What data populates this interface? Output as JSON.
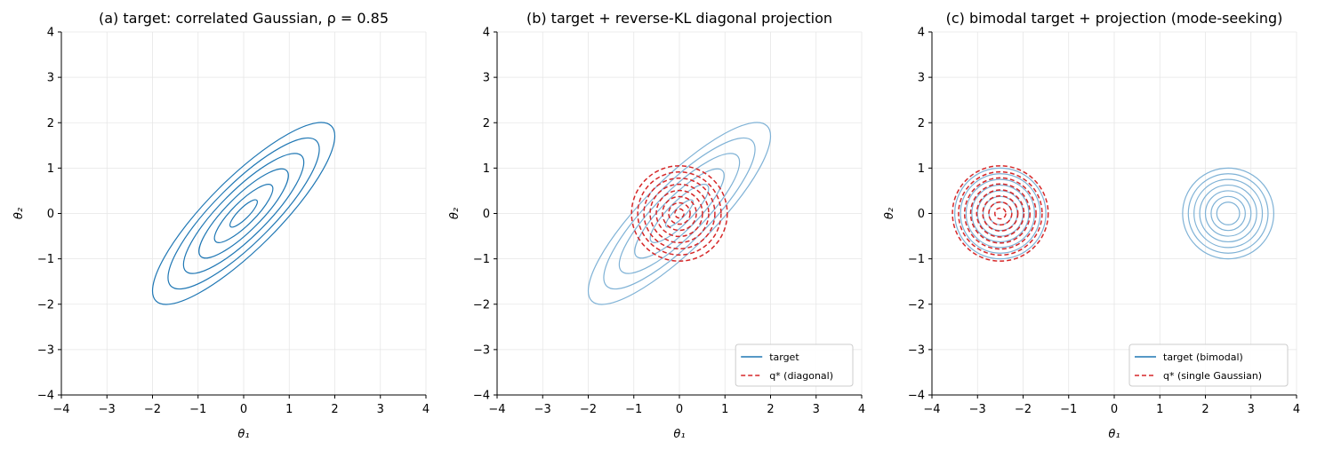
{
  "colors": {
    "target": "#1f77b4",
    "target_faded": "#7fb2d6",
    "projection": "#d62728",
    "grid": "#e6e6e6",
    "axis": "#000000"
  },
  "chart_data": [
    {
      "type": "contour",
      "title": "(a) target: correlated Gaussian, ρ = 0.85",
      "xlabel": "θ₁",
      "ylabel": "θ₂",
      "xlim": [
        -4,
        4
      ],
      "ylim": [
        -4,
        4
      ],
      "xticks": [
        "−4",
        "−3",
        "−2",
        "−1",
        "0",
        "1",
        "2",
        "3",
        "4"
      ],
      "yticks": [
        "−4",
        "−3",
        "−2",
        "−1",
        "0",
        "1",
        "2",
        "3",
        "4"
      ],
      "grid": true,
      "target": {
        "type": "correlated-gaussian",
        "mean": [
          0,
          0
        ],
        "sigma": [
          1,
          1
        ],
        "rho": 0.85,
        "levels": 6,
        "outer_extent": 2.0,
        "inner_extent": 0.3
      },
      "projection": null,
      "legend": null
    },
    {
      "type": "contour",
      "title": "(b) target + reverse-KL diagonal projection",
      "xlabel": "θ₁",
      "ylabel": "θ₂",
      "xlim": [
        -4,
        4
      ],
      "ylim": [
        -4,
        4
      ],
      "xticks": [
        "−4",
        "−3",
        "−2",
        "−1",
        "0",
        "1",
        "2",
        "3",
        "4"
      ],
      "yticks": [
        "−4",
        "−3",
        "−2",
        "−1",
        "0",
        "1",
        "2",
        "3",
        "4"
      ],
      "grid": true,
      "target": {
        "type": "correlated-gaussian",
        "mean": [
          0,
          0
        ],
        "sigma": [
          1,
          1
        ],
        "rho": 0.85,
        "levels": 6,
        "outer_extent": 2.0,
        "inner_extent": 0.3
      },
      "projection": {
        "type": "diagonal-gaussian",
        "mean": [
          0,
          0
        ],
        "levels": 8,
        "outer_radius": 1.05,
        "inner_radius": 0.1
      },
      "legend": {
        "position": "lower right",
        "entries": [
          {
            "label": "target",
            "style": "solid"
          },
          {
            "label": "q* (diagonal)",
            "style": "dashed"
          }
        ]
      }
    },
    {
      "type": "contour",
      "title": "(c) bimodal target + projection (mode-seeking)",
      "xlabel": "θ₁",
      "ylabel": "θ₂",
      "xlim": [
        -4,
        4
      ],
      "ylim": [
        -4,
        4
      ],
      "xticks": [
        "−4",
        "−3",
        "−2",
        "−1",
        "0",
        "1",
        "2",
        "3",
        "4"
      ],
      "yticks": [
        "−4",
        "−3",
        "−2",
        "−1",
        "0",
        "1",
        "2",
        "3",
        "4"
      ],
      "grid": true,
      "target": {
        "type": "bimodal-gaussian",
        "modes": [
          [
            -2.5,
            0
          ],
          [
            2.5,
            0
          ]
        ],
        "levels": 7,
        "outer_radius": 1.0,
        "inner_radius": 0.25
      },
      "projection": {
        "type": "single-gaussian",
        "mean": [
          -2.5,
          0
        ],
        "levels": 8,
        "outer_radius": 1.05,
        "inner_radius": 0.12
      },
      "legend": {
        "position": "lower right",
        "entries": [
          {
            "label": "target (bimodal)",
            "style": "solid"
          },
          {
            "label": "q* (single Gaussian)",
            "style": "dashed"
          }
        ]
      }
    }
  ]
}
